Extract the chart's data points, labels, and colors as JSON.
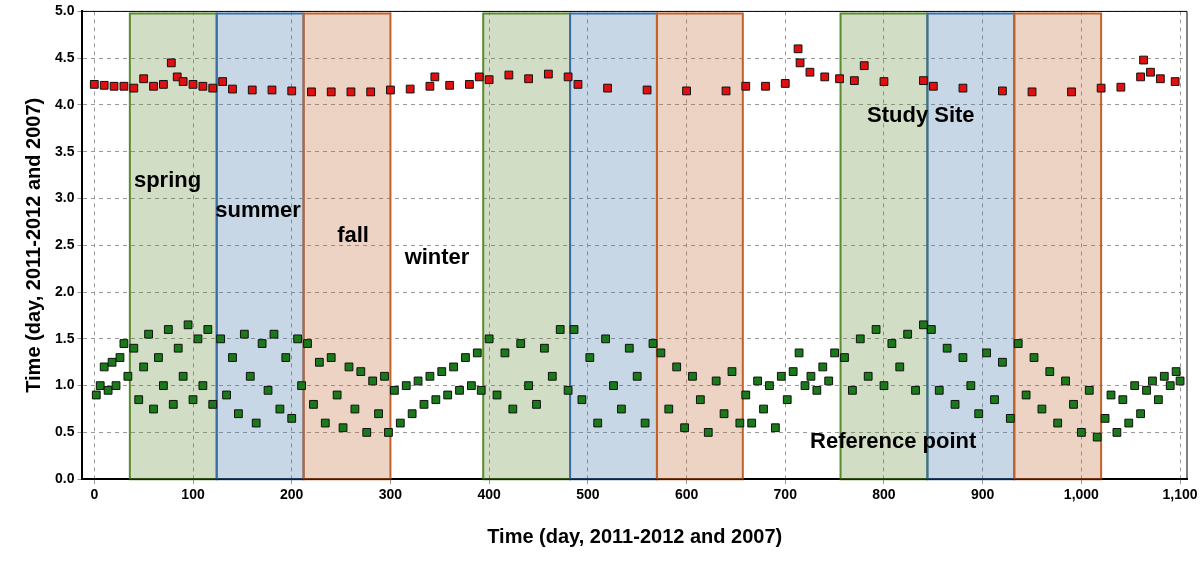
{
  "chart_data": {
    "type": "scatter",
    "xlabel": "Time (day, 2011-2012 and 2007)",
    "ylabel": "Time (day, 2011-2012 and 2007)",
    "xlim": [
      -12,
      1107
    ],
    "ylim": [
      0,
      5
    ],
    "xticks": [
      0,
      100,
      200,
      300,
      400,
      500,
      600,
      700,
      800,
      900,
      {
        "value": 1000,
        "label": "1,000"
      },
      {
        "value": 1100,
        "label": "1,100"
      }
    ],
    "yticks": [
      {
        "value": 0,
        "label": "0.0"
      },
      {
        "value": 0.5,
        "label": "0.5"
      },
      {
        "value": 1,
        "label": "1.0"
      },
      {
        "value": 1.5,
        "label": "1.5"
      },
      {
        "value": 2,
        "label": "2.0"
      },
      {
        "value": 2.5,
        "label": "2.5"
      },
      {
        "value": 3,
        "label": "3.0"
      },
      {
        "value": 3.5,
        "label": "3.5"
      },
      {
        "value": 4,
        "label": "4.0"
      },
      {
        "value": 4.5,
        "label": "4.5"
      },
      {
        "value": 5,
        "label": "5.0"
      }
    ],
    "grid": true,
    "legend": false,
    "marker": "square",
    "bands": [
      {
        "axis": "x",
        "from": 36,
        "to": 124,
        "color": "#5a8a2e"
      },
      {
        "axis": "x",
        "from": 124,
        "to": 212,
        "color": "#3a6ea5"
      },
      {
        "axis": "x",
        "from": 212,
        "to": 300,
        "color": "#c0622a"
      },
      {
        "axis": "x",
        "from": 394,
        "to": 482,
        "color": "#5a8a2e"
      },
      {
        "axis": "x",
        "from": 482,
        "to": 570,
        "color": "#3a6ea5"
      },
      {
        "axis": "x",
        "from": 570,
        "to": 657,
        "color": "#c0622a"
      },
      {
        "axis": "x",
        "from": 756,
        "to": 844,
        "color": "#5a8a2e"
      },
      {
        "axis": "x",
        "from": 844,
        "to": 932,
        "color": "#3a6ea5"
      },
      {
        "axis": "x",
        "from": 932,
        "to": 1020,
        "color": "#c0622a"
      }
    ],
    "annotations": [
      "spring",
      "summer",
      "fall",
      "winter",
      "Study Site",
      "Reference point"
    ],
    "series": [
      {
        "color": "#e01010",
        "x": [
          0,
          10,
          20,
          30,
          40,
          50,
          60,
          70,
          78,
          84,
          90,
          100,
          110,
          120,
          130,
          140,
          160,
          180,
          200,
          220,
          240,
          260,
          280,
          300,
          320,
          340,
          345,
          360,
          380,
          390,
          400,
          420,
          440,
          460,
          480,
          490,
          520,
          560,
          600,
          640,
          660,
          680,
          700,
          713,
          715,
          725,
          740,
          755,
          770,
          780,
          800,
          840,
          850,
          880,
          920,
          950,
          990,
          1020,
          1040,
          1060,
          1063,
          1070,
          1080,
          1095
        ],
        "values": [
          4.22,
          4.21,
          4.2,
          4.2,
          4.18,
          4.28,
          4.2,
          4.22,
          4.45,
          4.3,
          4.25,
          4.22,
          4.2,
          4.18,
          4.25,
          4.17,
          4.16,
          4.16,
          4.15,
          4.14,
          4.14,
          4.14,
          4.14,
          4.16,
          4.17,
          4.2,
          4.3,
          4.21,
          4.22,
          4.3,
          4.27,
          4.32,
          4.28,
          4.33,
          4.3,
          4.22,
          4.18,
          4.16,
          4.15,
          4.15,
          4.2,
          4.2,
          4.23,
          4.6,
          4.45,
          4.35,
          4.3,
          4.28,
          4.26,
          4.42,
          4.25,
          4.26,
          4.2,
          4.18,
          4.15,
          4.14,
          4.14,
          4.18,
          4.19,
          4.3,
          4.48,
          4.35,
          4.28,
          4.25
        ]
      },
      {
        "color": "#1a7a1a",
        "x": [
          2,
          6,
          10,
          14,
          18,
          22,
          26,
          30,
          34,
          40,
          45,
          50,
          55,
          60,
          65,
          70,
          75,
          80,
          85,
          90,
          95,
          100,
          105,
          110,
          115,
          120,
          128,
          134,
          140,
          146,
          152,
          158,
          164,
          170,
          176,
          182,
          188,
          194,
          200,
          206,
          210,
          216,
          222,
          228,
          234,
          240,
          246,
          252,
          258,
          264,
          270,
          276,
          282,
          288,
          294,
          298,
          304,
          310,
          316,
          322,
          328,
          334,
          340,
          346,
          352,
          358,
          364,
          370,
          376,
          382,
          388,
          392,
          400,
          408,
          416,
          424,
          432,
          440,
          448,
          456,
          464,
          472,
          480,
          486,
          494,
          502,
          510,
          518,
          526,
          534,
          542,
          550,
          558,
          566,
          574,
          582,
          590,
          598,
          606,
          614,
          622,
          630,
          638,
          646,
          654,
          660,
          666,
          672,
          678,
          684,
          690,
          696,
          702,
          708,
          714,
          720,
          726,
          732,
          738,
          744,
          750,
          760,
          768,
          776,
          784,
          792,
          800,
          808,
          816,
          824,
          832,
          840,
          848,
          856,
          864,
          872,
          880,
          888,
          896,
          904,
          912,
          920,
          928,
          936,
          944,
          952,
          960,
          968,
          976,
          984,
          992,
          1000,
          1008,
          1016,
          1024,
          1030,
          1036,
          1042,
          1048,
          1054,
          1060,
          1066,
          1072,
          1078,
          1084,
          1090,
          1096,
          1100
        ],
        "values": [
          0.9,
          1.0,
          1.2,
          0.95,
          1.25,
          1.0,
          1.3,
          1.45,
          1.1,
          1.4,
          0.85,
          1.2,
          1.55,
          0.75,
          1.3,
          1.0,
          1.6,
          0.8,
          1.4,
          1.1,
          1.65,
          0.85,
          1.5,
          1.0,
          1.6,
          0.8,
          1.5,
          0.9,
          1.3,
          0.7,
          1.55,
          1.1,
          0.6,
          1.45,
          0.95,
          1.55,
          0.75,
          1.3,
          0.65,
          1.5,
          1.0,
          1.45,
          0.8,
          1.25,
          0.6,
          1.3,
          0.9,
          0.55,
          1.2,
          0.75,
          1.15,
          0.5,
          1.05,
          0.7,
          1.1,
          0.5,
          0.95,
          0.6,
          1.0,
          0.7,
          1.05,
          0.8,
          1.1,
          0.85,
          1.15,
          0.9,
          1.2,
          0.95,
          1.3,
          1.0,
          1.35,
          0.95,
          1.5,
          0.9,
          1.35,
          0.75,
          1.45,
          1.0,
          0.8,
          1.4,
          1.1,
          1.6,
          0.95,
          1.6,
          0.85,
          1.3,
          0.6,
          1.5,
          1.0,
          0.75,
          1.4,
          1.1,
          0.6,
          1.45,
          1.35,
          0.75,
          1.2,
          0.55,
          1.1,
          0.85,
          0.5,
          1.05,
          0.7,
          1.15,
          0.6,
          0.9,
          0.6,
          1.05,
          0.75,
          1.0,
          0.55,
          1.1,
          0.85,
          1.15,
          1.35,
          1.0,
          1.1,
          0.95,
          1.2,
          1.05,
          1.35,
          1.3,
          0.95,
          1.5,
          1.1,
          1.6,
          1.0,
          1.45,
          1.2,
          1.55,
          0.95,
          1.65,
          1.6,
          0.95,
          1.4,
          0.8,
          1.3,
          1.0,
          0.7,
          1.35,
          0.85,
          1.25,
          0.65,
          1.45,
          0.9,
          1.3,
          0.75,
          1.15,
          0.6,
          1.05,
          0.8,
          0.5,
          0.95,
          0.45,
          0.65,
          0.9,
          0.5,
          0.85,
          0.6,
          1.0,
          0.7,
          0.95,
          1.05,
          0.85,
          1.1,
          1.0,
          1.15,
          1.05
        ]
      }
    ]
  }
}
